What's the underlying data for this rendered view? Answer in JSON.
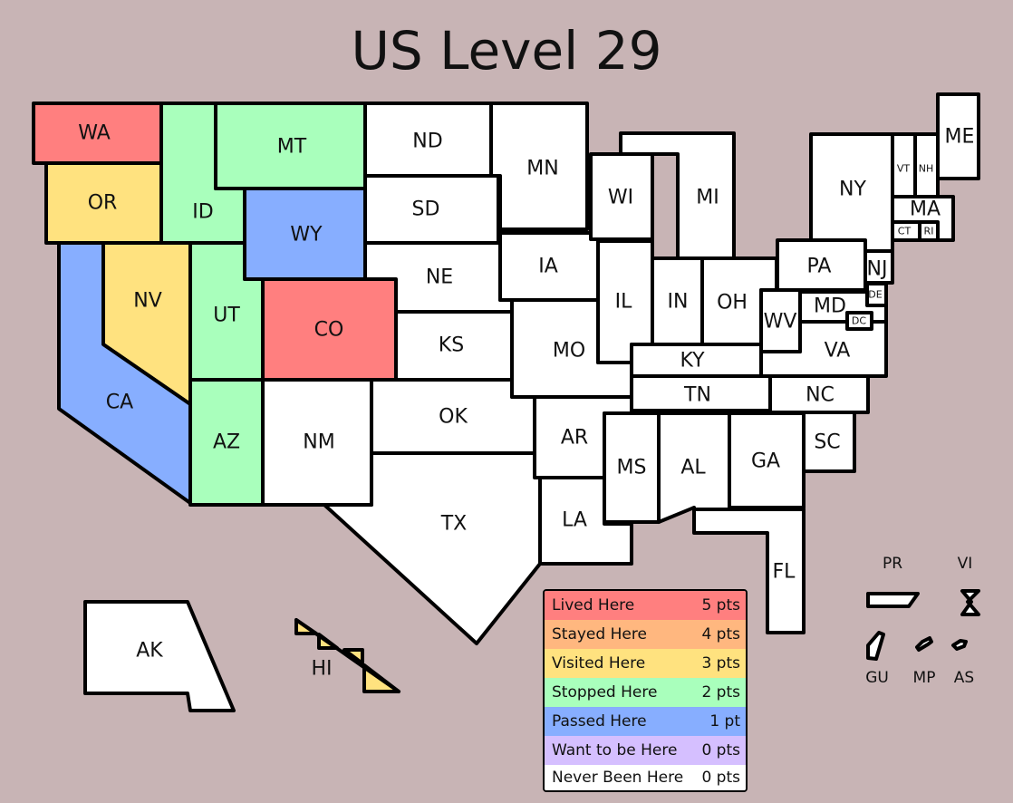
{
  "title": "US Level 29",
  "legend": [
    {
      "label": "Lived Here",
      "points": "5 pts",
      "color": "#ff7f7f",
      "level": "lived"
    },
    {
      "label": "Stayed Here",
      "points": "4 pts",
      "color": "#ffb77f",
      "level": "stayed"
    },
    {
      "label": "Visited Here",
      "points": "3 pts",
      "color": "#ffe27f",
      "level": "visited"
    },
    {
      "label": "Stopped Here",
      "points": "2 pts",
      "color": "#a9ffbc",
      "level": "stopped"
    },
    {
      "label": "Passed Here",
      "points": "1 pt",
      "color": "#87aeff",
      "level": "passed"
    },
    {
      "label": "Want to be Here",
      "points": "0 pts",
      "color": "#d5bfff",
      "level": "want"
    },
    {
      "label": "Never Been Here",
      "points": "0 pts",
      "color": "#ffffff",
      "level": "never"
    }
  ],
  "states": {
    "WA": "lived",
    "CO": "lived",
    "OR": "visited",
    "NV": "visited",
    "HI": "visited",
    "ID": "stopped",
    "MT": "stopped",
    "UT": "stopped",
    "AZ": "stopped",
    "WY": "passed",
    "CA": "passed",
    "ND": "never",
    "SD": "never",
    "NE": "never",
    "KS": "never",
    "OK": "never",
    "TX": "never",
    "NM": "never",
    "MN": "never",
    "IA": "never",
    "MO": "never",
    "AR": "never",
    "LA": "never",
    "WI": "never",
    "MI": "never",
    "IL": "never",
    "IN": "never",
    "OH": "never",
    "KY": "never",
    "TN": "never",
    "MS": "never",
    "AL": "never",
    "GA": "never",
    "FL": "never",
    "NC": "never",
    "SC": "never",
    "VA": "never",
    "WV": "never",
    "MD": "never",
    "DC": "never",
    "DE": "never",
    "PA": "never",
    "NJ": "never",
    "NY": "never",
    "VT": "never",
    "NH": "never",
    "ME": "never",
    "MA": "never",
    "CT": "never",
    "RI": "never",
    "AK": "never",
    "PR": "never",
    "VI": "never",
    "GU": "never",
    "MP": "never",
    "AS": "never"
  }
}
